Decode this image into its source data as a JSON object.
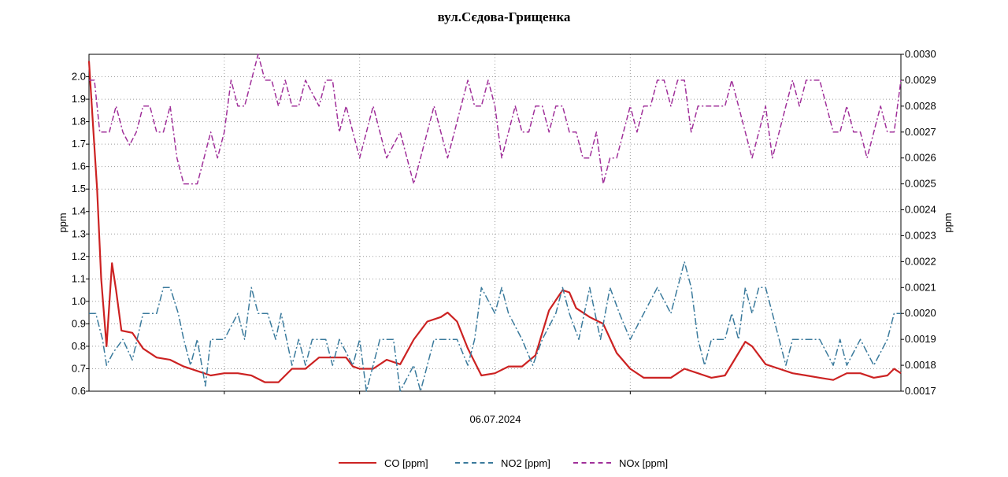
{
  "chart_data": {
    "type": "line",
    "title": "вул.Сєдова-Грищенка",
    "xlabel": "06.07.2024",
    "ylabel_left": "ppm",
    "ylabel_right": "ppm",
    "ylim_left": [
      0.6,
      2.1
    ],
    "ylim_right": [
      0.0017,
      0.003
    ],
    "yticks_left": [
      "0.6",
      "0.7",
      "0.8",
      "0.9",
      "1.0",
      "1.1",
      "1.2",
      "1.3",
      "1.4",
      "1.5",
      "1.6",
      "1.7",
      "1.8",
      "1.9",
      "2.0"
    ],
    "yticks_right": [
      "0.0017",
      "0.0018",
      "0.0019",
      "0.0020",
      "0.0021",
      "0.0022",
      "0.0023",
      "0.0024",
      "0.0025",
      "0.0026",
      "0.0027",
      "0.0028",
      "0.0029",
      "0.0030"
    ],
    "xlim": [
      0,
      6
    ],
    "x_gridlines": [
      1,
      2,
      3,
      4,
      5
    ],
    "grid": true,
    "legend_position": "bottom",
    "series": [
      {
        "name": "CO [ppm]",
        "axis": "left",
        "color": "#cc2222",
        "style": "solid",
        "points": [
          [
            0,
            2.07
          ],
          [
            0.03,
            1.78
          ],
          [
            0.06,
            1.5
          ],
          [
            0.09,
            1.1
          ],
          [
            0.13,
            0.8
          ],
          [
            0.17,
            1.17
          ],
          [
            0.2,
            1.05
          ],
          [
            0.24,
            0.87
          ],
          [
            0.32,
            0.86
          ],
          [
            0.4,
            0.79
          ],
          [
            0.5,
            0.75
          ],
          [
            0.6,
            0.74
          ],
          [
            0.7,
            0.71
          ],
          [
            0.8,
            0.69
          ],
          [
            0.9,
            0.67
          ],
          [
            1.0,
            0.68
          ],
          [
            1.1,
            0.68
          ],
          [
            1.2,
            0.67
          ],
          [
            1.3,
            0.64
          ],
          [
            1.4,
            0.64
          ],
          [
            1.5,
            0.7
          ],
          [
            1.6,
            0.7
          ],
          [
            1.7,
            0.75
          ],
          [
            1.8,
            0.75
          ],
          [
            1.9,
            0.75
          ],
          [
            1.95,
            0.71
          ],
          [
            2.0,
            0.7
          ],
          [
            2.1,
            0.7
          ],
          [
            2.2,
            0.74
          ],
          [
            2.3,
            0.72
          ],
          [
            2.4,
            0.83
          ],
          [
            2.5,
            0.91
          ],
          [
            2.6,
            0.93
          ],
          [
            2.65,
            0.95
          ],
          [
            2.72,
            0.91
          ],
          [
            2.8,
            0.79
          ],
          [
            2.9,
            0.67
          ],
          [
            3.0,
            0.68
          ],
          [
            3.1,
            0.71
          ],
          [
            3.2,
            0.71
          ],
          [
            3.3,
            0.76
          ],
          [
            3.4,
            0.96
          ],
          [
            3.5,
            1.05
          ],
          [
            3.55,
            1.04
          ],
          [
            3.6,
            0.97
          ],
          [
            3.7,
            0.93
          ],
          [
            3.8,
            0.9
          ],
          [
            3.9,
            0.77
          ],
          [
            4.0,
            0.7
          ],
          [
            4.1,
            0.66
          ],
          [
            4.2,
            0.66
          ],
          [
            4.3,
            0.66
          ],
          [
            4.4,
            0.7
          ],
          [
            4.5,
            0.68
          ],
          [
            4.6,
            0.66
          ],
          [
            4.7,
            0.67
          ],
          [
            4.8,
            0.77
          ],
          [
            4.85,
            0.82
          ],
          [
            4.9,
            0.8
          ],
          [
            5.0,
            0.72
          ],
          [
            5.1,
            0.7
          ],
          [
            5.2,
            0.68
          ],
          [
            5.3,
            0.67
          ],
          [
            5.4,
            0.66
          ],
          [
            5.5,
            0.65
          ],
          [
            5.6,
            0.68
          ],
          [
            5.7,
            0.68
          ],
          [
            5.8,
            0.66
          ],
          [
            5.9,
            0.67
          ],
          [
            5.95,
            0.7
          ],
          [
            6.0,
            0.68
          ]
        ]
      },
      {
        "name": "NO2 [ppm]",
        "axis": "right",
        "color": "#3a7a9c",
        "style": "dash-dot",
        "points": [
          [
            0,
            0.002
          ],
          [
            0.05,
            0.002
          ],
          [
            0.1,
            0.0019
          ],
          [
            0.13,
            0.0018
          ],
          [
            0.18,
            0.00185
          ],
          [
            0.25,
            0.0019
          ],
          [
            0.32,
            0.00182
          ],
          [
            0.4,
            0.002
          ],
          [
            0.5,
            0.002
          ],
          [
            0.55,
            0.0021
          ],
          [
            0.6,
            0.0021
          ],
          [
            0.66,
            0.002
          ],
          [
            0.7,
            0.0019
          ],
          [
            0.75,
            0.0018
          ],
          [
            0.8,
            0.0019
          ],
          [
            0.86,
            0.00172
          ],
          [
            0.9,
            0.0019
          ],
          [
            1.0,
            0.0019
          ],
          [
            1.1,
            0.002
          ],
          [
            1.15,
            0.0019
          ],
          [
            1.2,
            0.0021
          ],
          [
            1.25,
            0.002
          ],
          [
            1.32,
            0.002
          ],
          [
            1.38,
            0.0019
          ],
          [
            1.42,
            0.002
          ],
          [
            1.5,
            0.0018
          ],
          [
            1.55,
            0.0019
          ],
          [
            1.6,
            0.0018
          ],
          [
            1.65,
            0.0019
          ],
          [
            1.75,
            0.0019
          ],
          [
            1.8,
            0.0018
          ],
          [
            1.85,
            0.0019
          ],
          [
            1.95,
            0.0018
          ],
          [
            2.0,
            0.0019
          ],
          [
            2.05,
            0.0017
          ],
          [
            2.15,
            0.0019
          ],
          [
            2.25,
            0.0019
          ],
          [
            2.3,
            0.0017
          ],
          [
            2.4,
            0.0018
          ],
          [
            2.45,
            0.0017
          ],
          [
            2.55,
            0.0019
          ],
          [
            2.65,
            0.0019
          ],
          [
            2.72,
            0.0019
          ],
          [
            2.8,
            0.0018
          ],
          [
            2.85,
            0.0019
          ],
          [
            2.9,
            0.0021
          ],
          [
            3.0,
            0.002
          ],
          [
            3.05,
            0.0021
          ],
          [
            3.1,
            0.002
          ],
          [
            3.2,
            0.0019
          ],
          [
            3.28,
            0.0018
          ],
          [
            3.35,
            0.0019
          ],
          [
            3.45,
            0.002
          ],
          [
            3.5,
            0.0021
          ],
          [
            3.55,
            0.002
          ],
          [
            3.62,
            0.0019
          ],
          [
            3.7,
            0.0021
          ],
          [
            3.78,
            0.0019
          ],
          [
            3.85,
            0.0021
          ],
          [
            3.92,
            0.002
          ],
          [
            4.0,
            0.0019
          ],
          [
            4.1,
            0.002
          ],
          [
            4.2,
            0.0021
          ],
          [
            4.3,
            0.002
          ],
          [
            4.35,
            0.0021
          ],
          [
            4.4,
            0.0022
          ],
          [
            4.45,
            0.0021
          ],
          [
            4.5,
            0.0019
          ],
          [
            4.55,
            0.0018
          ],
          [
            4.6,
            0.0019
          ],
          [
            4.7,
            0.0019
          ],
          [
            4.75,
            0.002
          ],
          [
            4.8,
            0.0019
          ],
          [
            4.85,
            0.0021
          ],
          [
            4.9,
            0.002
          ],
          [
            4.95,
            0.0021
          ],
          [
            5.0,
            0.0021
          ],
          [
            5.05,
            0.002
          ],
          [
            5.1,
            0.0019
          ],
          [
            5.15,
            0.0018
          ],
          [
            5.2,
            0.0019
          ],
          [
            5.3,
            0.0019
          ],
          [
            5.4,
            0.0019
          ],
          [
            5.5,
            0.0018
          ],
          [
            5.55,
            0.0019
          ],
          [
            5.6,
            0.0018
          ],
          [
            5.7,
            0.0019
          ],
          [
            5.8,
            0.0018
          ],
          [
            5.9,
            0.0019
          ],
          [
            5.95,
            0.002
          ],
          [
            6.0,
            0.002
          ]
        ]
      },
      {
        "name": "NOx [ppm]",
        "axis": "right",
        "color": "#a0309a",
        "style": "dash-dash-dot",
        "points": [
          [
            0,
            0.0029
          ],
          [
            0.04,
            0.0029
          ],
          [
            0.08,
            0.0027
          ],
          [
            0.15,
            0.0027
          ],
          [
            0.2,
            0.0028
          ],
          [
            0.25,
            0.0027
          ],
          [
            0.3,
            0.00265
          ],
          [
            0.35,
            0.0027
          ],
          [
            0.4,
            0.0028
          ],
          [
            0.45,
            0.0028
          ],
          [
            0.5,
            0.0027
          ],
          [
            0.55,
            0.0027
          ],
          [
            0.6,
            0.0028
          ],
          [
            0.65,
            0.0026
          ],
          [
            0.7,
            0.0025
          ],
          [
            0.8,
            0.0025
          ],
          [
            0.85,
            0.0026
          ],
          [
            0.9,
            0.0027
          ],
          [
            0.95,
            0.0026
          ],
          [
            1.0,
            0.0027
          ],
          [
            1.05,
            0.0029
          ],
          [
            1.1,
            0.0028
          ],
          [
            1.15,
            0.0028
          ],
          [
            1.2,
            0.0029
          ],
          [
            1.25,
            0.003
          ],
          [
            1.3,
            0.0029
          ],
          [
            1.35,
            0.0029
          ],
          [
            1.4,
            0.0028
          ],
          [
            1.45,
            0.0029
          ],
          [
            1.5,
            0.0028
          ],
          [
            1.55,
            0.0028
          ],
          [
            1.6,
            0.0029
          ],
          [
            1.7,
            0.0028
          ],
          [
            1.75,
            0.0029
          ],
          [
            1.8,
            0.0029
          ],
          [
            1.85,
            0.0027
          ],
          [
            1.9,
            0.0028
          ],
          [
            1.95,
            0.0027
          ],
          [
            2.0,
            0.0026
          ],
          [
            2.05,
            0.0027
          ],
          [
            2.1,
            0.0028
          ],
          [
            2.15,
            0.0027
          ],
          [
            2.2,
            0.0026
          ],
          [
            2.3,
            0.0027
          ],
          [
            2.35,
            0.0026
          ],
          [
            2.4,
            0.0025
          ],
          [
            2.45,
            0.0026
          ],
          [
            2.5,
            0.0027
          ],
          [
            2.55,
            0.0028
          ],
          [
            2.6,
            0.0027
          ],
          [
            2.65,
            0.0026
          ],
          [
            2.7,
            0.0027
          ],
          [
            2.75,
            0.0028
          ],
          [
            2.8,
            0.0029
          ],
          [
            2.85,
            0.0028
          ],
          [
            2.9,
            0.0028
          ],
          [
            2.95,
            0.0029
          ],
          [
            3.0,
            0.0028
          ],
          [
            3.05,
            0.0026
          ],
          [
            3.1,
            0.0027
          ],
          [
            3.15,
            0.0028
          ],
          [
            3.2,
            0.0027
          ],
          [
            3.25,
            0.0027
          ],
          [
            3.3,
            0.0028
          ],
          [
            3.35,
            0.0028
          ],
          [
            3.4,
            0.0027
          ],
          [
            3.45,
            0.0028
          ],
          [
            3.5,
            0.0028
          ],
          [
            3.55,
            0.0027
          ],
          [
            3.6,
            0.0027
          ],
          [
            3.65,
            0.0026
          ],
          [
            3.7,
            0.0026
          ],
          [
            3.75,
            0.0027
          ],
          [
            3.8,
            0.0025
          ],
          [
            3.85,
            0.0026
          ],
          [
            3.9,
            0.0026
          ],
          [
            3.95,
            0.0027
          ],
          [
            4.0,
            0.0028
          ],
          [
            4.05,
            0.0027
          ],
          [
            4.1,
            0.0028
          ],
          [
            4.15,
            0.0028
          ],
          [
            4.2,
            0.0029
          ],
          [
            4.25,
            0.0029
          ],
          [
            4.3,
            0.0028
          ],
          [
            4.35,
            0.0029
          ],
          [
            4.4,
            0.0029
          ],
          [
            4.45,
            0.0027
          ],
          [
            4.5,
            0.0028
          ],
          [
            4.55,
            0.0028
          ],
          [
            4.6,
            0.0028
          ],
          [
            4.65,
            0.0028
          ],
          [
            4.7,
            0.0028
          ],
          [
            4.75,
            0.0029
          ],
          [
            4.8,
            0.0028
          ],
          [
            4.85,
            0.0027
          ],
          [
            4.9,
            0.0026
          ],
          [
            4.95,
            0.0027
          ],
          [
            5.0,
            0.0028
          ],
          [
            5.05,
            0.0026
          ],
          [
            5.1,
            0.0027
          ],
          [
            5.15,
            0.0028
          ],
          [
            5.2,
            0.0029
          ],
          [
            5.25,
            0.0028
          ],
          [
            5.3,
            0.0029
          ],
          [
            5.35,
            0.0029
          ],
          [
            5.4,
            0.0029
          ],
          [
            5.45,
            0.0028
          ],
          [
            5.5,
            0.0027
          ],
          [
            5.55,
            0.0027
          ],
          [
            5.6,
            0.0028
          ],
          [
            5.65,
            0.0027
          ],
          [
            5.7,
            0.0027
          ],
          [
            5.75,
            0.0026
          ],
          [
            5.8,
            0.0027
          ],
          [
            5.85,
            0.0028
          ],
          [
            5.9,
            0.0027
          ],
          [
            5.95,
            0.0027
          ],
          [
            6.0,
            0.0029
          ]
        ]
      }
    ]
  }
}
